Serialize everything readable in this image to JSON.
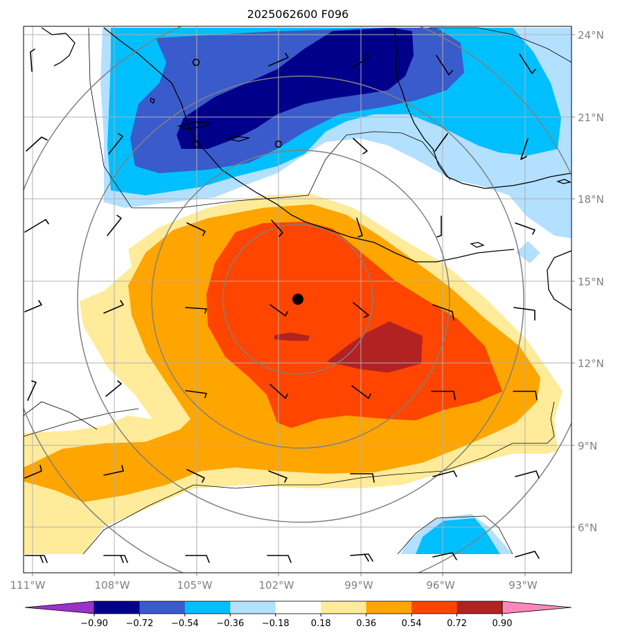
{
  "title": "2025062600 F096",
  "lat_labels": [
    "24°N",
    "21°N",
    "18°N",
    "15°N",
    "12°N",
    "9°N",
    "6°N"
  ],
  "lon_labels": [
    "111°W",
    "108°W",
    "105°W",
    "102°W",
    "99°W",
    "96°W",
    "93°W"
  ],
  "colorbar": {
    "tick_labels": [
      "−0.90",
      "−0.72",
      "−0.54",
      "−0.36",
      "−0.18",
      "0.18",
      "0.36",
      "0.54",
      "0.72",
      "0.90"
    ],
    "colors": [
      "#9933cc",
      "#00008b",
      "#3a5bcc",
      "#00bfff",
      "#b3e0ff",
      "#ffffff",
      "#ffeb99",
      "#ffa500",
      "#ff4500",
      "#b22222",
      "#ff88bb"
    ]
  },
  "map": {
    "extent": {
      "lon": [
        -111.5,
        -91.5
      ],
      "lat": [
        4.5,
        24.5
      ]
    },
    "center": {
      "lon": -101.3,
      "lat": 14.3
    },
    "field_colors": {
      "n090": "#00008b",
      "n072": "#3a5bcc",
      "n054": "#00bfff",
      "n036": "#b3e0ff",
      "p018": "#ffeb99",
      "p036": "#ffa500",
      "p054": "#ff4500",
      "p072": "#b22222"
    }
  }
}
